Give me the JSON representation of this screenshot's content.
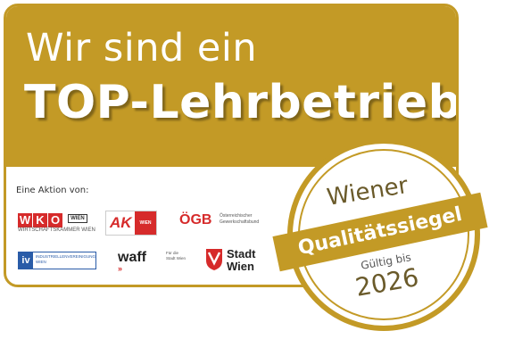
{
  "headline": {
    "line1": "Wir sind ein",
    "line2": "TOP-Lehrbetrieb"
  },
  "aktion_label": "Eine Aktion von:",
  "partners": {
    "wko": {
      "letters": [
        "W",
        "K",
        "O"
      ],
      "tag": "WIEN",
      "sub": "WIRTSCHAFTSKAMMER WIEN"
    },
    "ak": {
      "mark": "AK",
      "tag": "WIEN"
    },
    "ogb": {
      "mark": "ÖGB",
      "sub": "Österreichischer Gewerkschaftsbund"
    },
    "iv": {
      "mark": "iv",
      "sub1": "INDUSTRIELLENVEREINIGUNG",
      "sub2": "WIEN"
    },
    "waff": {
      "mark": "waff",
      "sub": "Für die Stadt Wien"
    },
    "stadt_wien": {
      "line1": "Stadt",
      "line2": "Wien"
    }
  },
  "seal": {
    "top": "Wiener",
    "band": "Qualitätssiegel",
    "valid": "Gültig bis",
    "year": "2026"
  },
  "colors": {
    "gold": "#c39a26",
    "red": "#d62b2b",
    "blue": "#2a5ca8"
  }
}
